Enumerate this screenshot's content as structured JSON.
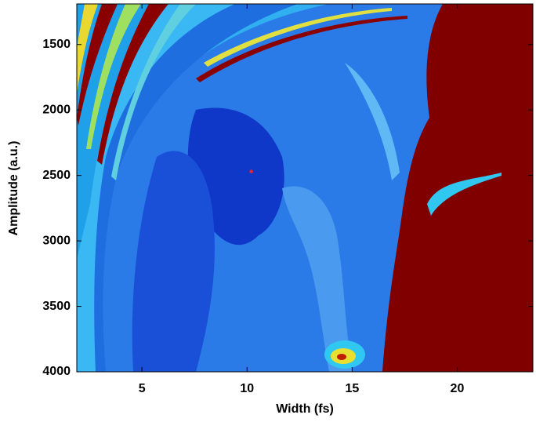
{
  "chart_data": {
    "type": "heatmap",
    "x_label": "Width (fs)",
    "y_label": "Amplitude (a.u.)",
    "xlim": [
      1.9,
      23.6
    ],
    "xticks": [
      5,
      10,
      15,
      20
    ],
    "ylim": [
      1190,
      4000
    ],
    "yticks": [
      1500,
      2000,
      2500,
      3000,
      3500,
      4000
    ],
    "y_reversed": true,
    "marker": {
      "x": 10.2,
      "y": 2470,
      "color": "#ff2020"
    }
  }
}
